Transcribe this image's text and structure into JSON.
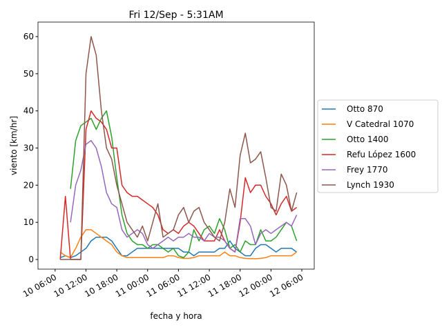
{
  "chart_data": {
    "type": "line",
    "title": "Fri 12/Sep - 5:31AM",
    "xlabel": "fecha y hora",
    "ylabel": "viento [km/hr]",
    "x": [
      "10 07:00",
      "10 08:00",
      "10 09:00",
      "10 10:00",
      "10 11:00",
      "10 12:00",
      "10 13:00",
      "10 14:00",
      "10 15:00",
      "10 16:00",
      "10 17:00",
      "10 18:00",
      "10 19:00",
      "10 20:00",
      "10 21:00",
      "10 22:00",
      "10 23:00",
      "11 00:00",
      "11 01:00",
      "11 02:00",
      "11 03:00",
      "11 04:00",
      "11 05:00",
      "11 06:00",
      "11 07:00",
      "11 08:00",
      "11 09:00",
      "11 10:00",
      "11 11:00",
      "11 12:00",
      "11 13:00",
      "11 14:00",
      "11 15:00",
      "11 16:00",
      "11 17:00",
      "11 18:00",
      "11 19:00",
      "11 20:00",
      "11 21:00",
      "11 22:00",
      "11 23:00",
      "12 00:00",
      "12 01:00",
      "12 02:00",
      "12 03:00",
      "12 04:00",
      "12 05:00"
    ],
    "series": [
      {
        "name": "Otto 870",
        "color": "#1f77b4",
        "values": [
          0.5,
          1,
          0.5,
          1,
          2,
          3,
          5,
          6,
          6,
          6,
          5,
          3,
          1,
          1,
          2,
          3,
          3,
          3,
          3,
          3,
          3,
          3,
          3,
          3,
          2,
          2,
          1,
          2,
          2,
          2,
          2,
          3,
          3,
          5,
          3,
          2,
          1,
          1,
          3,
          4,
          4,
          3,
          2,
          3,
          3,
          3,
          2
        ]
      },
      {
        "name": "V Catedral 1070",
        "color": "#ff7f0e",
        "values": [
          2,
          1,
          0.5,
          3,
          6,
          8,
          8,
          7,
          6,
          5,
          4,
          2,
          1,
          0.5,
          0.5,
          0.5,
          0.5,
          0.5,
          0.5,
          0.5,
          0.5,
          1,
          1,
          0.5,
          0.3,
          0.3,
          0.5,
          1,
          1,
          1,
          1,
          1,
          2,
          1,
          1,
          0.5,
          0.3,
          0.2,
          0.2,
          0.3,
          0.5,
          1,
          1,
          1,
          1,
          1,
          2
        ]
      },
      {
        "name": "Otto 1400",
        "color": "#2ca02c",
        "values": [
          null,
          null,
          19,
          32,
          36,
          37,
          38,
          35,
          38,
          40,
          33,
          22,
          12,
          7,
          5,
          4,
          4,
          3,
          4,
          4,
          3,
          2,
          3,
          1,
          0.5,
          2,
          8,
          5,
          8,
          9,
          7,
          11,
          8,
          3,
          4,
          2,
          5,
          4,
          4,
          8,
          5,
          5,
          6,
          8,
          10,
          9,
          5
        ]
      },
      {
        "name": "Refu López 1600",
        "color": "#d62728",
        "values": [
          0,
          17,
          0,
          0,
          0,
          35,
          40,
          38,
          37,
          35,
          30,
          30,
          20,
          18,
          17,
          17,
          16,
          15,
          14,
          12,
          8,
          7,
          8,
          7,
          9,
          10,
          9,
          7,
          5,
          5,
          5,
          8,
          5,
          3,
          2,
          10,
          22,
          18,
          20,
          20,
          17,
          15,
          12,
          15,
          17,
          13,
          14
        ]
      },
      {
        "name": "Frey 1770",
        "color": "#9467bd",
        "values": [
          null,
          null,
          10,
          20,
          24,
          31,
          32,
          30,
          25,
          18,
          15,
          14,
          8,
          6,
          7,
          8,
          7,
          4,
          3,
          4,
          5,
          6,
          5,
          6,
          6,
          7,
          6,
          6,
          5,
          7,
          6,
          6,
          5,
          3,
          2,
          11,
          11,
          9,
          4,
          7,
          8,
          7,
          8,
          9,
          10,
          9,
          12
        ]
      },
      {
        "name": "Lynch 1930",
        "color": "#8c564b",
        "values": [
          0,
          0,
          0,
          0,
          0,
          50,
          60,
          55,
          40,
          30,
          27,
          20,
          15,
          10,
          8,
          6,
          9,
          5,
          10,
          15,
          6,
          7,
          8,
          12,
          14,
          10,
          13,
          14,
          10,
          8,
          6,
          5,
          10,
          19,
          14,
          28,
          34,
          26,
          27,
          29,
          22,
          14,
          13,
          23,
          20,
          13,
          18
        ]
      }
    ],
    "xlim": [
      "10 02:40",
      "12 08:25"
    ],
    "xticks": [
      "10 06:00",
      "10 12:00",
      "10 18:00",
      "11 00:00",
      "11 06:00",
      "11 12:00",
      "11 18:00",
      "12 00:00",
      "12 06:00"
    ],
    "ylim": [
      -2.6,
      63.9
    ],
    "yticks": [
      0,
      10,
      20,
      30,
      40,
      50,
      60
    ],
    "legend": "right"
  }
}
